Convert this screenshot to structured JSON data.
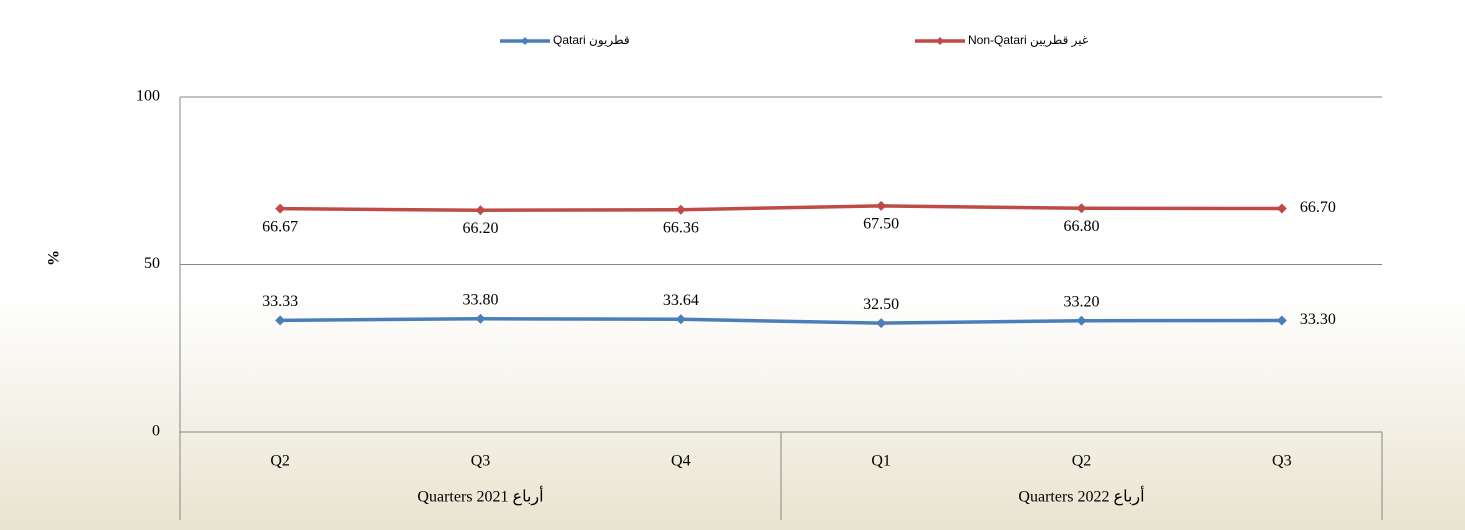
{
  "chart_data": {
    "type": "line",
    "y_axis_label": "%",
    "categories": [
      "Q2",
      "Q3",
      "Q4",
      "Q1",
      "Q2",
      "Q3"
    ],
    "category_groups": [
      {
        "label": "Quarters 2021 أرباع",
        "count": 3
      },
      {
        "label": "Quarters 2022 أرباع",
        "count": 3
      }
    ],
    "series": [
      {
        "name": "Qatari قطريون",
        "color": "#4a7ebb",
        "label_position": "above",
        "values": [
          33.33,
          33.8,
          33.64,
          32.5,
          33.2,
          33.3
        ],
        "value_labels": [
          "33.33",
          "33.80",
          "33.64",
          "32.50",
          "33.20",
          "33.30"
        ]
      },
      {
        "name": "Non-Qatari غير قطريين",
        "color": "#be4b48",
        "label_position": "below",
        "values": [
          66.67,
          66.2,
          66.36,
          67.5,
          66.8,
          66.7
        ],
        "value_labels": [
          "66.67",
          "66.20",
          "66.36",
          "67.50",
          "66.80",
          "66.70"
        ]
      }
    ],
    "ylim": [
      0,
      100
    ],
    "yticks": [
      0,
      50,
      100
    ],
    "grid": true,
    "legend": "top"
  }
}
